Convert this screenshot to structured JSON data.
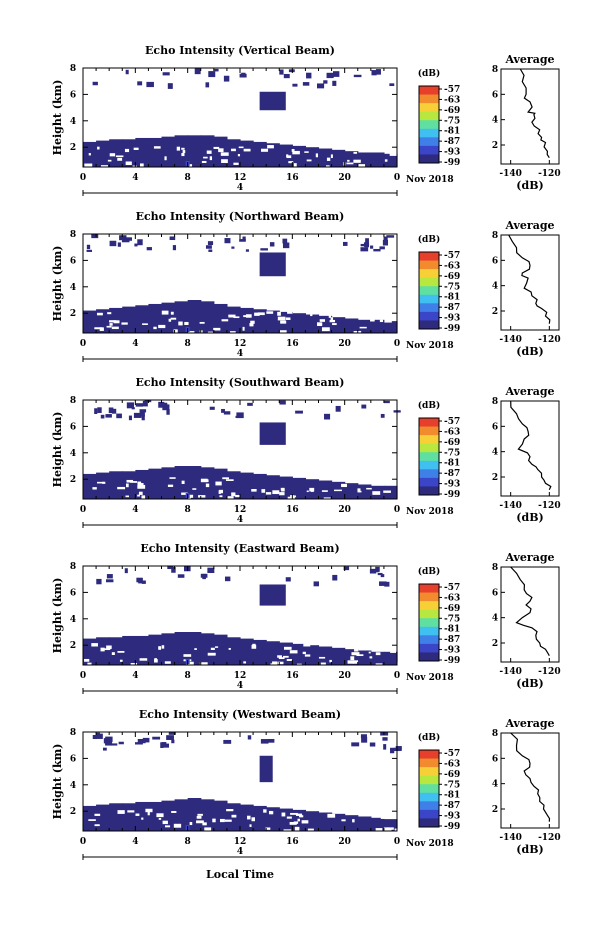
{
  "colorbar": {
    "unit": "(dB)",
    "ticks": [
      "-57",
      "-63",
      "-69",
      "-75",
      "-81",
      "-87",
      "-93",
      "-99"
    ],
    "colors": [
      "#2e2b7e",
      "#3a45c8",
      "#3f7fe8",
      "#3fc0f0",
      "#5fe0a0",
      "#b8e840",
      "#f7d038",
      "#f28a2e",
      "#e6402c"
    ]
  },
  "shared": {
    "xlabel": "Local Time",
    "date_label": "Nov 2018",
    "day_label": "4",
    "xticks": [
      "0",
      "4",
      "8",
      "12",
      "16",
      "20",
      "0"
    ],
    "yticks": [
      "8",
      "6",
      "4",
      "2"
    ],
    "ylabel": "Height (km)",
    "avg_title": "Average",
    "avg_xticks": [
      "-140",
      "-120"
    ],
    "avg_xlabel": "(dB)",
    "avg_yticks": [
      "8",
      "6",
      "4",
      "2"
    ]
  },
  "chart_data": [
    {
      "type": "heatmap",
      "title": "Echo Intensity (Vertical Beam)",
      "xlabel": "Local Time",
      "ylabel": "Height (km)",
      "xlim": [
        0,
        24
      ],
      "ylim": [
        0.5,
        8
      ],
      "layer_top_km": [
        2.4,
        2.5,
        2.6,
        2.6,
        2.7,
        2.7,
        2.8,
        2.9,
        2.9,
        2.9,
        2.8,
        2.6,
        2.5,
        2.4,
        2.3,
        2.2,
        2.1,
        2.0,
        1.9,
        1.8,
        1.7,
        1.6,
        1.6,
        1.5
      ],
      "cloud": {
        "x": [
          13.5,
          15.5
        ],
        "y": [
          4.8,
          6.2
        ]
      },
      "average_profile": {
        "x": [
          -135,
          -134,
          -132,
          -130,
          -131,
          -128,
          -129,
          -125,
          -124,
          -122,
          -121,
          -120
        ],
        "y": [
          8,
          7,
          6,
          5.4,
          4.6,
          4.4,
          3.8,
          3.2,
          2.6,
          2.2,
          1.5,
          1
        ]
      }
    },
    {
      "type": "heatmap",
      "title": "Echo Intensity (Northward Beam)",
      "xlabel": "Local Time",
      "ylabel": "Height (km)",
      "xlim": [
        0,
        24
      ],
      "ylim": [
        0.5,
        8
      ],
      "layer_top_km": [
        2.2,
        2.3,
        2.4,
        2.5,
        2.6,
        2.7,
        2.8,
        2.9,
        3.0,
        2.9,
        2.7,
        2.5,
        2.4,
        2.3,
        2.2,
        2.1,
        2.0,
        1.9,
        1.8,
        1.7,
        1.6,
        1.5,
        1.5,
        1.4
      ],
      "cloud": {
        "x": [
          13.5,
          15.5
        ],
        "y": [
          4.8,
          6.6
        ]
      },
      "average_profile": {
        "x": [
          -141,
          -137,
          -134,
          -130,
          -134,
          -131,
          -133,
          -129,
          -127,
          -124,
          -122,
          -120
        ],
        "y": [
          8,
          7,
          6.2,
          5.6,
          5.0,
          4.6,
          3.8,
          3.2,
          2.6,
          2.2,
          1.6,
          1
        ]
      }
    },
    {
      "type": "heatmap",
      "title": "Echo Intensity (Southward Beam)",
      "xlabel": "Local Time",
      "ylabel": "Height (km)",
      "xlim": [
        0,
        24
      ],
      "ylim": [
        0.5,
        8
      ],
      "layer_top_km": [
        2.4,
        2.5,
        2.6,
        2.6,
        2.7,
        2.8,
        2.9,
        3.0,
        3.0,
        2.9,
        2.8,
        2.6,
        2.5,
        2.4,
        2.3,
        2.2,
        2.1,
        2.0,
        1.9,
        1.8,
        1.7,
        1.6,
        1.5,
        1.5
      ],
      "cloud": {
        "x": [
          13.5,
          15.5
        ],
        "y": [
          4.6,
          6.3
        ]
      },
      "average_profile": {
        "x": [
          -140,
          -137,
          -134,
          -131,
          -133,
          -136,
          -130,
          -129,
          -126,
          -124,
          -122,
          -120
        ],
        "y": [
          8,
          7,
          6.2,
          5.6,
          5.0,
          4.2,
          3.6,
          3.0,
          2.6,
          2.0,
          1.5,
          1
        ]
      }
    },
    {
      "type": "heatmap",
      "title": "Echo Intensity (Eastward Beam)",
      "xlabel": "Local Time",
      "ylabel": "Height (km)",
      "xlim": [
        0,
        24
      ],
      "ylim": [
        0.5,
        8
      ],
      "layer_top_km": [
        2.5,
        2.6,
        2.6,
        2.7,
        2.7,
        2.8,
        2.9,
        3.0,
        3.0,
        2.9,
        2.8,
        2.6,
        2.5,
        2.4,
        2.3,
        2.2,
        2.1,
        2.0,
        1.9,
        1.8,
        1.7,
        1.6,
        1.5,
        1.5
      ],
      "cloud": {
        "x": [
          13.5,
          15.5
        ],
        "y": [
          5.0,
          6.6
        ]
      },
      "average_profile": {
        "x": [
          -140,
          -135,
          -133,
          -129,
          -132,
          -130,
          -137,
          -129,
          -127,
          -125,
          -122,
          -120
        ],
        "y": [
          8,
          7,
          6.2,
          5.6,
          5.0,
          4.4,
          3.6,
          3.2,
          2.6,
          2.0,
          1.5,
          1
        ]
      }
    },
    {
      "type": "heatmap",
      "title": "Echo Intensity (Westward Beam)",
      "xlabel": "Local Time",
      "ylabel": "Height (km)",
      "xlim": [
        0,
        24
      ],
      "ylim": [
        0.5,
        8
      ],
      "layer_top_km": [
        2.4,
        2.5,
        2.6,
        2.6,
        2.7,
        2.7,
        2.8,
        2.9,
        3.0,
        2.9,
        2.8,
        2.6,
        2.5,
        2.4,
        2.3,
        2.2,
        2.1,
        2.0,
        1.9,
        1.8,
        1.7,
        1.6,
        1.5,
        1.4
      ],
      "cloud": {
        "x": [
          13.5,
          14.5
        ],
        "y": [
          4.2,
          6.2
        ]
      },
      "average_profile": {
        "x": [
          -140,
          -137,
          -134,
          -130,
          -133,
          -130,
          -128,
          -126,
          -125,
          -123,
          -121,
          -120
        ],
        "y": [
          8,
          7,
          6.2,
          5.6,
          5.0,
          4.4,
          3.8,
          3.2,
          2.6,
          2.0,
          1.5,
          1
        ]
      }
    }
  ]
}
